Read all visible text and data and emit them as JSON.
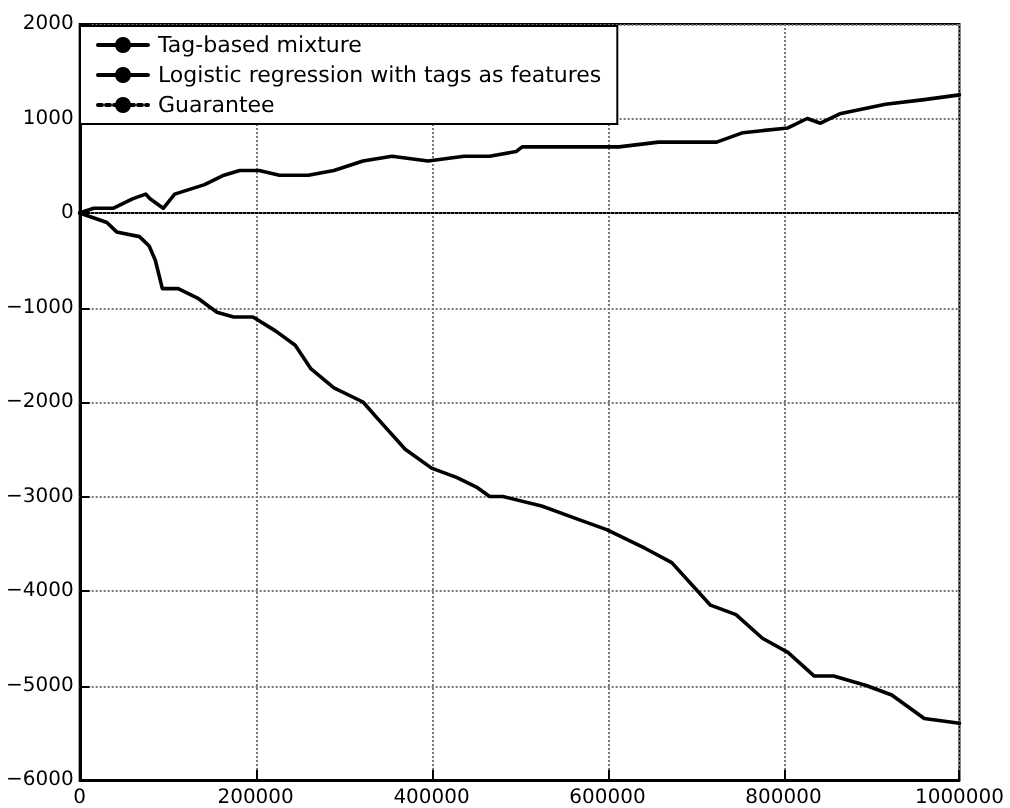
{
  "chart_data": {
    "type": "line",
    "xlim": [
      0,
      1000000
    ],
    "xticks": [
      0,
      200000,
      400000,
      600000,
      800000,
      1000000
    ],
    "ylim": [
      -6000,
      2000
    ],
    "yticks": [
      -6000,
      -5000,
      -4000,
      -3000,
      -2000,
      -1000,
      0,
      1000,
      2000
    ],
    "grid": true,
    "legend": "top left",
    "marker": "none",
    "series": [
      {
        "name": "Tag-based mixture",
        "color": "#000000",
        "line_style": "solid",
        "x": [
          0,
          16000,
          38000,
          60000,
          75000,
          80000,
          95000,
          108000,
          142000,
          164000,
          182000,
          204000,
          227000,
          260000,
          289000,
          322000,
          355000,
          396000,
          437000,
          466000,
          496000,
          503000,
          562000,
          613000,
          658000,
          724000,
          754000,
          805000,
          827000,
          842000,
          864000,
          916000,
          960000,
          1000000
        ],
        "values": [
          0,
          50,
          50,
          150,
          200,
          150,
          50,
          200,
          300,
          400,
          450,
          450,
          400,
          400,
          450,
          550,
          600,
          550,
          600,
          600,
          650,
          700,
          700,
          700,
          750,
          750,
          850,
          900,
          1000,
          950,
          1050,
          1150,
          1200,
          1250
        ]
      },
      {
        "name": "Logistic regression with tags as features",
        "color": "#000000",
        "line_style": "solid",
        "x": [
          0,
          31000,
          42000,
          68000,
          79000,
          86000,
          94000,
          112000,
          134000,
          156000,
          175000,
          197000,
          223000,
          245000,
          263000,
          289000,
          322000,
          341000,
          370000,
          400000,
          429000,
          451000,
          466000,
          481000,
          525000,
          569000,
          599000,
          643000,
          673000,
          717000,
          746000,
          776000,
          805000,
          835000,
          857000,
          894000,
          923000,
          960000,
          1000000
        ],
        "values": [
          0,
          -100,
          -200,
          -250,
          -350,
          -500,
          -800,
          -800,
          -900,
          -1050,
          -1100,
          -1100,
          -1250,
          -1400,
          -1650,
          -1850,
          -2000,
          -2200,
          -2500,
          -2700,
          -2800,
          -2900,
          -3000,
          -3000,
          -3100,
          -3250,
          -3350,
          -3550,
          -3700,
          -4150,
          -4250,
          -4500,
          -4650,
          -4900,
          -4900,
          -5000,
          -5100,
          -5350,
          -5400
        ]
      },
      {
        "name": "Guarantee",
        "color": "#000000",
        "line_style": "dotted",
        "x": [
          0,
          1000000
        ],
        "values": [
          0,
          0
        ]
      }
    ]
  }
}
